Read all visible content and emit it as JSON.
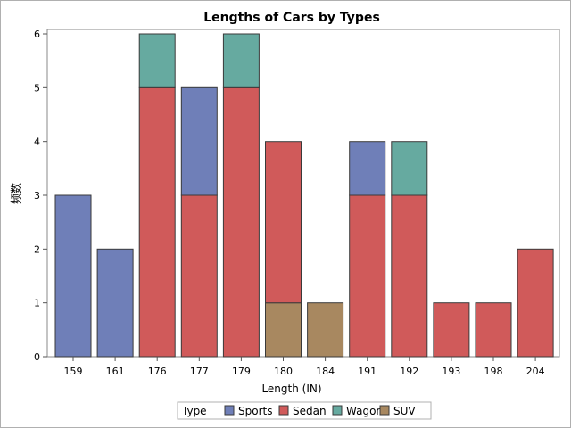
{
  "chart_data": {
    "type": "bar",
    "stacked": true,
    "title": "Lengths of Cars by Types",
    "xlabel": "Length (IN)",
    "ylabel": "频数",
    "categories": [
      "159",
      "161",
      "176",
      "177",
      "179",
      "180",
      "184",
      "191",
      "192",
      "193",
      "198",
      "204"
    ],
    "yticks": [
      0,
      1,
      2,
      3,
      4,
      5,
      6
    ],
    "ylim": [
      0,
      6
    ],
    "grid": false,
    "legend_title": "Type",
    "legend_position": "bottom",
    "series": [
      {
        "name": "Sports",
        "color": "#6f7fb8",
        "values": [
          3,
          2,
          0,
          2,
          0,
          0,
          0,
          1,
          0,
          0,
          0,
          0
        ]
      },
      {
        "name": "Sedan",
        "color": "#d05a5a",
        "values": [
          0,
          0,
          5,
          3,
          5,
          3,
          0,
          3,
          3,
          1,
          1,
          2
        ]
      },
      {
        "name": "Wagon",
        "color": "#66aaa0",
        "values": [
          0,
          0,
          1,
          0,
          1,
          0,
          0,
          0,
          1,
          0,
          0,
          0
        ]
      },
      {
        "name": "SUV",
        "color": "#a88860",
        "values": [
          0,
          0,
          0,
          0,
          0,
          1,
          1,
          0,
          0,
          0,
          0,
          0
        ]
      }
    ],
    "stack_order": [
      "SUV",
      "Sedan",
      "Sports",
      "Wagon"
    ]
  }
}
